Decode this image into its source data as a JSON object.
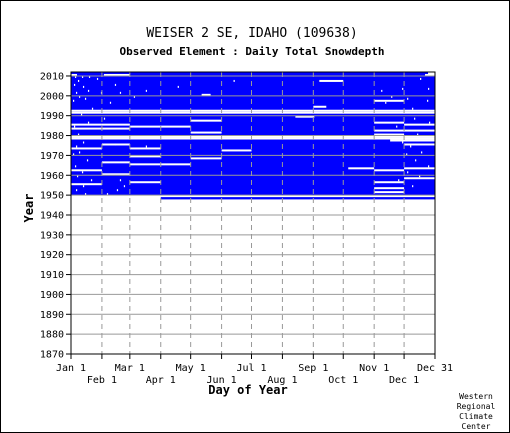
{
  "chart_data": {
    "type": "heatmap",
    "title": "WEISER 2 SE, IDAHO   (109638)",
    "subtitle": "Observed Element : Daily Total Snowdepth",
    "xlabel": "Day of Year",
    "ylabel": "Year",
    "ylim": [
      1870,
      2012
    ],
    "xlim": [
      1,
      365
    ],
    "x_ticks_upper": [
      {
        "label": "Jan 1",
        "day": 1
      },
      {
        "label": "Mar 1",
        "day": 60
      },
      {
        "label": "May 1",
        "day": 121
      },
      {
        "label": "Jul 1",
        "day": 182
      },
      {
        "label": "Sep 1",
        "day": 244
      },
      {
        "label": "Nov 1",
        "day": 305
      },
      {
        "label": "Dec 31",
        "day": 365
      }
    ],
    "x_ticks_lower": [
      {
        "label": "Feb 1",
        "day": 32
      },
      {
        "label": "Apr 1",
        "day": 91
      },
      {
        "label": "Jun 1",
        "day": 152
      },
      {
        "label": "Aug 1",
        "day": 213
      },
      {
        "label": "Oct 1",
        "day": 274
      },
      {
        "label": "Dec 1",
        "day": 335
      }
    ],
    "y_ticks": [
      1870,
      1880,
      1890,
      1900,
      1910,
      1920,
      1930,
      1940,
      1950,
      1960,
      1970,
      1980,
      1990,
      2000,
      2010
    ],
    "record": {
      "first_year": 1948,
      "first_year_start_day": 91,
      "last_year": 2011,
      "last_year_end_day": 358
    },
    "missing_years": [
      1978,
      1979,
      1991,
      1992
    ],
    "missing_segments": [
      {
        "year": 2010,
        "start": 1,
        "end": 6
      },
      {
        "year": 2010,
        "start": 34,
        "end": 59
      },
      {
        "year": 2010,
        "start": 356,
        "end": 365
      },
      {
        "year": 2007,
        "start": 250,
        "end": 273
      },
      {
        "year": 2000,
        "start": 132,
        "end": 140
      },
      {
        "year": 1997,
        "start": 305,
        "end": 334
      },
      {
        "year": 1994,
        "start": 244,
        "end": 256
      },
      {
        "year": 1989,
        "start": 226,
        "end": 244
      },
      {
        "year": 1987,
        "start": 121,
        "end": 151
      },
      {
        "year": 1986,
        "start": 305,
        "end": 334
      },
      {
        "year": 1985,
        "start": 1,
        "end": 31
      },
      {
        "year": 1985,
        "start": 32,
        "end": 59
      },
      {
        "year": 1985,
        "start": 335,
        "end": 365
      },
      {
        "year": 1984,
        "start": 60,
        "end": 120
      },
      {
        "year": 1983,
        "start": 1,
        "end": 31
      },
      {
        "year": 1983,
        "start": 32,
        "end": 59
      },
      {
        "year": 1982,
        "start": 305,
        "end": 365
      },
      {
        "year": 1981,
        "start": 121,
        "end": 151
      },
      {
        "year": 1980,
        "start": 305,
        "end": 334
      },
      {
        "year": 1977,
        "start": 321,
        "end": 365
      },
      {
        "year": 1975,
        "start": 32,
        "end": 59
      },
      {
        "year": 1975,
        "start": 335,
        "end": 365
      },
      {
        "year": 1973,
        "start": 1,
        "end": 31
      },
      {
        "year": 1973,
        "start": 60,
        "end": 90
      },
      {
        "year": 1972,
        "start": 152,
        "end": 181
      },
      {
        "year": 1969,
        "start": 60,
        "end": 90
      },
      {
        "year": 1968,
        "start": 121,
        "end": 151
      },
      {
        "year": 1966,
        "start": 32,
        "end": 59
      },
      {
        "year": 1965,
        "start": 60,
        "end": 120
      },
      {
        "year": 1963,
        "start": 279,
        "end": 304
      },
      {
        "year": 1963,
        "start": 335,
        "end": 365
      },
      {
        "year": 1962,
        "start": 1,
        "end": 31
      },
      {
        "year": 1962,
        "start": 305,
        "end": 334
      },
      {
        "year": 1960,
        "start": 32,
        "end": 59
      },
      {
        "year": 1958,
        "start": 335,
        "end": 365
      },
      {
        "year": 1956,
        "start": 60,
        "end": 90
      },
      {
        "year": 1956,
        "start": 305,
        "end": 334
      },
      {
        "year": 1955,
        "start": 1,
        "end": 31
      },
      {
        "year": 1953,
        "start": 305,
        "end": 334
      },
      {
        "year": 1951,
        "start": 305,
        "end": 334
      }
    ],
    "missing_days": [
      {
        "year": 2009,
        "day": 5
      },
      {
        "year": 2009,
        "day": 12
      },
      {
        "year": 2009,
        "day": 19
      },
      {
        "year": 2008,
        "day": 27
      },
      {
        "year": 2008,
        "day": 351
      },
      {
        "year": 2007,
        "day": 8
      },
      {
        "year": 2007,
        "day": 164
      },
      {
        "year": 2005,
        "day": 4
      },
      {
        "year": 2005,
        "day": 45
      },
      {
        "year": 2004,
        "day": 13
      },
      {
        "year": 2004,
        "day": 108
      },
      {
        "year": 2003,
        "day": 333
      },
      {
        "year": 2003,
        "day": 359
      },
      {
        "year": 2002,
        "day": 18
      },
      {
        "year": 2002,
        "day": 76
      },
      {
        "year": 2002,
        "day": 312
      },
      {
        "year": 2001,
        "day": 6
      },
      {
        "year": 2001,
        "day": 31
      },
      {
        "year": 2001,
        "day": 50
      },
      {
        "year": 1999,
        "day": 9
      },
      {
        "year": 1999,
        "day": 64
      },
      {
        "year": 1999,
        "day": 322
      },
      {
        "year": 1998,
        "day": 15
      },
      {
        "year": 1998,
        "day": 338
      },
      {
        "year": 1997,
        "day": 3
      },
      {
        "year": 1997,
        "day": 358
      },
      {
        "year": 1996,
        "day": 40
      },
      {
        "year": 1996,
        "day": 316
      },
      {
        "year": 1993,
        "day": 22
      },
      {
        "year": 1993,
        "day": 343
      },
      {
        "year": 1990,
        "day": 11
      },
      {
        "year": 1988,
        "day": 34
      },
      {
        "year": 1988,
        "day": 345
      },
      {
        "year": 1986,
        "day": 18
      },
      {
        "year": 1986,
        "day": 360
      },
      {
        "year": 1984,
        "day": 4
      },
      {
        "year": 1984,
        "day": 327
      },
      {
        "year": 1980,
        "day": 8
      },
      {
        "year": 1980,
        "day": 348
      },
      {
        "year": 1976,
        "day": 13
      },
      {
        "year": 1976,
        "day": 333
      },
      {
        "year": 1975,
        "day": 45
      },
      {
        "year": 1974,
        "day": 6
      },
      {
        "year": 1974,
        "day": 76
      },
      {
        "year": 1974,
        "day": 341
      },
      {
        "year": 1971,
        "day": 9
      },
      {
        "year": 1971,
        "day": 352
      },
      {
        "year": 1970,
        "day": 3
      },
      {
        "year": 1970,
        "day": 337
      },
      {
        "year": 1967,
        "day": 17
      },
      {
        "year": 1967,
        "day": 346
      },
      {
        "year": 1964,
        "day": 5
      },
      {
        "year": 1964,
        "day": 359
      },
      {
        "year": 1961,
        "day": 12
      },
      {
        "year": 1961,
        "day": 338
      },
      {
        "year": 1959,
        "day": 7
      },
      {
        "year": 1959,
        "day": 350
      },
      {
        "year": 1957,
        "day": 21
      },
      {
        "year": 1957,
        "day": 50
      },
      {
        "year": 1957,
        "day": 329
      },
      {
        "year": 1954,
        "day": 13
      },
      {
        "year": 1954,
        "day": 54
      },
      {
        "year": 1954,
        "day": 343
      },
      {
        "year": 1952,
        "day": 6
      },
      {
        "year": 1952,
        "day": 47
      },
      {
        "year": 1950,
        "day": 15
      },
      {
        "year": 1950,
        "day": 37
      }
    ],
    "colors": {
      "data": "#0000ff",
      "frame": "#000000",
      "grid": "#999999",
      "background": "#ffffff"
    },
    "grid": true,
    "credit": [
      "Western",
      "Regional",
      "Climate",
      "Center"
    ]
  }
}
